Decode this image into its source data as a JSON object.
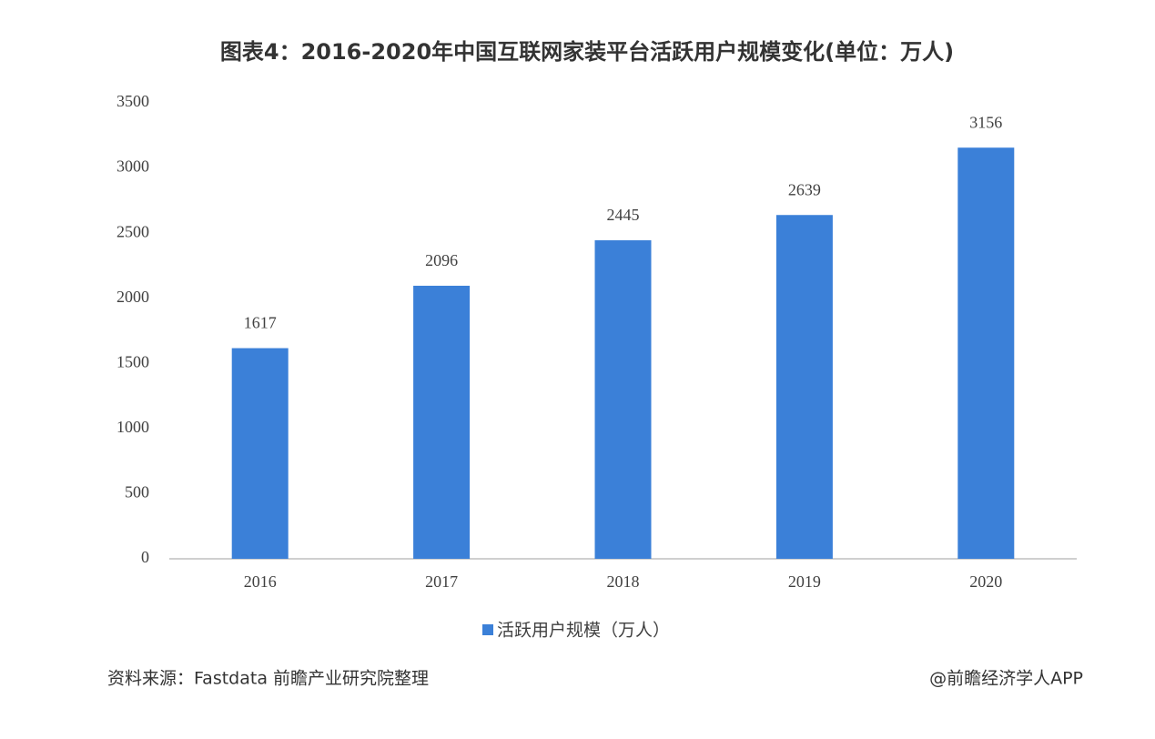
{
  "chart_data": {
    "type": "bar",
    "title": "图表4：2016-2020年中国互联网家装平台活跃用户规模变化(单位：万人)",
    "categories": [
      "2016",
      "2017",
      "2018",
      "2019",
      "2020"
    ],
    "series": [
      {
        "name": "活跃用户规模（万人）",
        "color": "#3b80d8",
        "values": [
          1617,
          2096,
          2445,
          2639,
          3156
        ]
      }
    ],
    "ylim": [
      0,
      3500
    ],
    "yticks": [
      0,
      500,
      1000,
      1500,
      2000,
      2500,
      3000,
      3500
    ],
    "grid": false,
    "legend": "bottom"
  },
  "source": "资料来源：Fastdata 前瞻产业研究院整理",
  "credit": "@前瞻经济学人APP"
}
